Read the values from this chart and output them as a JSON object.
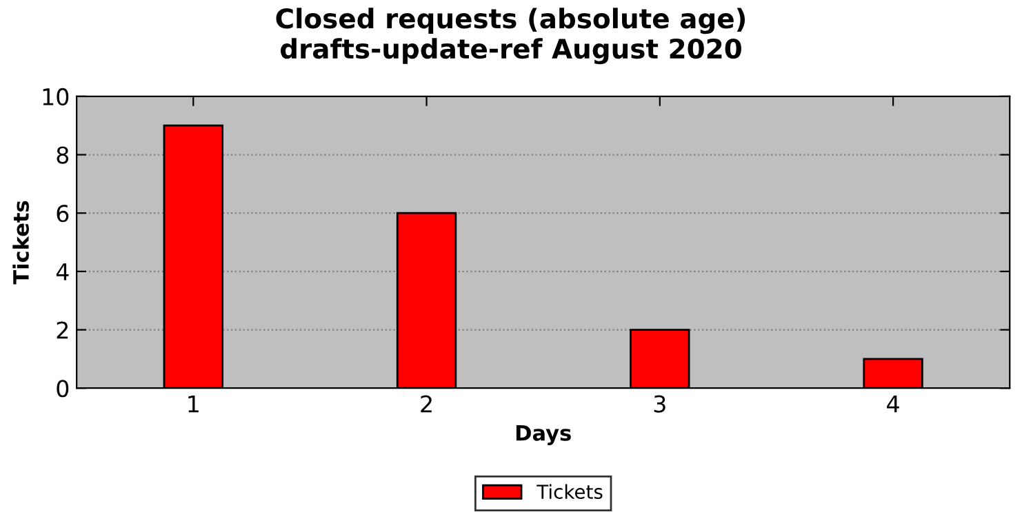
{
  "chart_data": {
    "type": "bar",
    "title": "Closed requests (absolute age)\ndrafts-update-ref August 2020",
    "xlabel": "Days",
    "ylabel": "Tickets",
    "x": [
      1,
      2,
      3,
      4
    ],
    "series": [
      {
        "name": "Tickets",
        "color": "#ff0000",
        "values": [
          9,
          6,
          2,
          1
        ]
      }
    ],
    "xlim": [
      0.5,
      4.5
    ],
    "xticks": [
      1,
      2,
      3,
      4
    ],
    "ylim": [
      0,
      10
    ],
    "yticks": [
      0,
      2,
      4,
      6,
      8,
      10
    ],
    "grid": "y",
    "legend": "bottom"
  }
}
